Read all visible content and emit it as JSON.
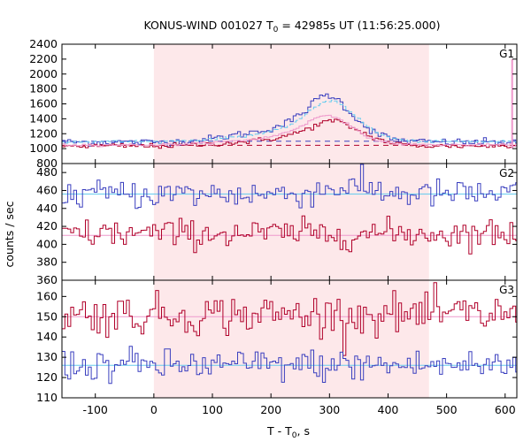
{
  "chart_data": {
    "type": "line",
    "title": "KONUS-WIND 001027 T",
    "title_sub": "0",
    "title_rest": " = 42985s UT (11:56:25.000)",
    "xlabel": "T - T",
    "xlabel_sub": "0",
    "xlabel_rest": ", s",
    "ylabel": "counts / sec",
    "xlim": [
      -157,
      620
    ],
    "x_ticks": [
      -100,
      0,
      100,
      200,
      300,
      400,
      500,
      600
    ],
    "bin_width_s": 5,
    "highlight_interval": [
      0,
      470
    ],
    "highlight_color": "#fde8ea",
    "colors": {
      "blue": "#3a3fbf",
      "red": "#b0002a",
      "cyan": "#66ccee",
      "pink": "#ee99cc"
    },
    "panels": [
      {
        "label": "G1",
        "ylim": [
          800,
          2400
        ],
        "y_ticks": [
          800,
          1000,
          1200,
          1400,
          1600,
          1800,
          2000,
          2200,
          2400
        ],
        "series": [
          {
            "color": "blue",
            "style": "steps",
            "base": 1085,
            "noise": 25,
            "bumps": [
              [
                150,
                50,
                80
              ],
              [
                280,
                60,
                350
              ],
              [
                292,
                25,
                200
              ],
              [
                320,
                35,
                120
              ]
            ]
          },
          {
            "color": "red",
            "style": "steps",
            "base": 1035,
            "noise": 18,
            "bumps": [
              [
                150,
                55,
                40
              ],
              [
                285,
                60,
                200
              ],
              [
                300,
                25,
                80
              ],
              [
                330,
                40,
                80
              ]
            ]
          },
          {
            "color": "cyan",
            "style": "dashed-steps",
            "base": 1095,
            "noise": 8,
            "bumps": [
              [
                160,
                60,
                60
              ],
              [
                285,
                55,
                300
              ],
              [
                300,
                30,
                180
              ],
              [
                330,
                40,
                100
              ]
            ]
          },
          {
            "color": "pink",
            "style": "steps",
            "base": 1050,
            "noise": 8,
            "bumps": [
              [
                160,
                60,
                50
              ],
              [
                285,
                55,
                250
              ],
              [
                300,
                30,
                150
              ]
            ]
          }
        ],
        "background_lines": [
          {
            "y": 1100,
            "color": "blue"
          },
          {
            "y": 1045,
            "color": "red"
          }
        ],
        "spike": {
          "x": 612,
          "y": 2200,
          "color": "pink"
        }
      },
      {
        "label": "G2",
        "ylim": [
          360,
          490
        ],
        "y_ticks": [
          360,
          380,
          400,
          420,
          440,
          460,
          480
        ],
        "series": [
          {
            "color": "blue",
            "style": "steps",
            "base": 456,
            "noise": 8,
            "bumps": [
              [
                330,
                40,
                8
              ]
            ]
          },
          {
            "color": "red",
            "style": "steps",
            "base": 412,
            "noise": 8,
            "bumps": []
          }
        ],
        "background_lines": [
          {
            "y": 456,
            "color": "cyan"
          },
          {
            "y": 410,
            "color": "pink"
          }
        ]
      },
      {
        "label": "G3",
        "ylim": [
          110,
          168
        ],
        "y_ticks": [
          110,
          120,
          130,
          140,
          150,
          160
        ],
        "series": [
          {
            "color": "red",
            "style": "steps",
            "base": 151,
            "noise": 5,
            "bumps": []
          },
          {
            "color": "blue",
            "style": "steps",
            "base": 126,
            "noise": 4,
            "bumps": []
          }
        ],
        "background_lines": [
          {
            "y": 126,
            "color": "cyan"
          },
          {
            "y": 150,
            "color": "pink"
          }
        ]
      }
    ]
  }
}
